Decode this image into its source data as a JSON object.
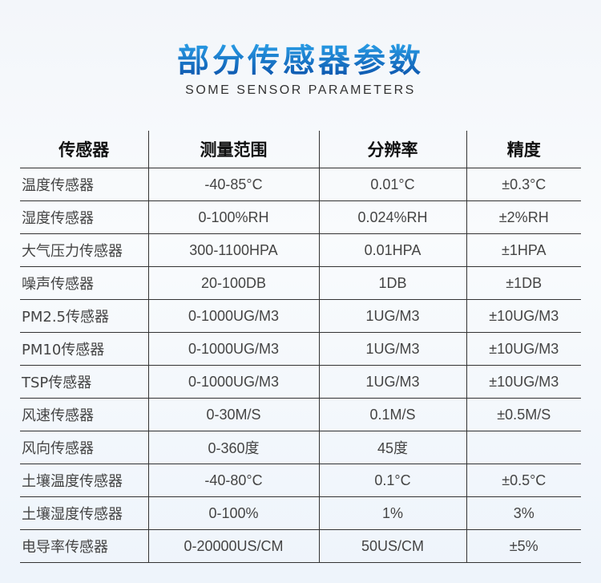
{
  "title": "部分传感器参数",
  "subtitle": "SOME SENSOR PARAMETERS",
  "headers": [
    "传感器",
    "测量范围",
    "分辨率",
    "精度"
  ],
  "rows": [
    [
      "温度传感器",
      "-40-85°C",
      "0.01°C",
      "±0.3°C"
    ],
    [
      "湿度传感器",
      "0-100%RH",
      "0.024%RH",
      "±2%RH"
    ],
    [
      "大气压力传感器",
      "300-1100HPA",
      "0.01HPA",
      "±1HPA"
    ],
    [
      "噪声传感器",
      "20-100DB",
      "1DB",
      "±1DB"
    ],
    [
      "PM2.5传感器",
      "0-1000UG/M3",
      "1UG/M3",
      "±10UG/M3"
    ],
    [
      "PM10传感器",
      "0-1000UG/M3",
      "1UG/M3",
      "±10UG/M3"
    ],
    [
      "TSP传感器",
      "0-1000UG/M3",
      "1UG/M3",
      "±10UG/M3"
    ],
    [
      "风速传感器",
      "0-30M/S",
      "0.1M/S",
      "±0.5M/S"
    ],
    [
      "风向传感器",
      "0-360度",
      "45度",
      ""
    ],
    [
      "土壤温度传感器",
      "-40-80°C",
      "0.1°C",
      "±0.5°C"
    ],
    [
      "土壤湿度传感器",
      "0-100%",
      "1%",
      "3%"
    ],
    [
      "电导率传感器",
      "0-20000US/CM",
      "50US/CM",
      "±5%"
    ]
  ]
}
